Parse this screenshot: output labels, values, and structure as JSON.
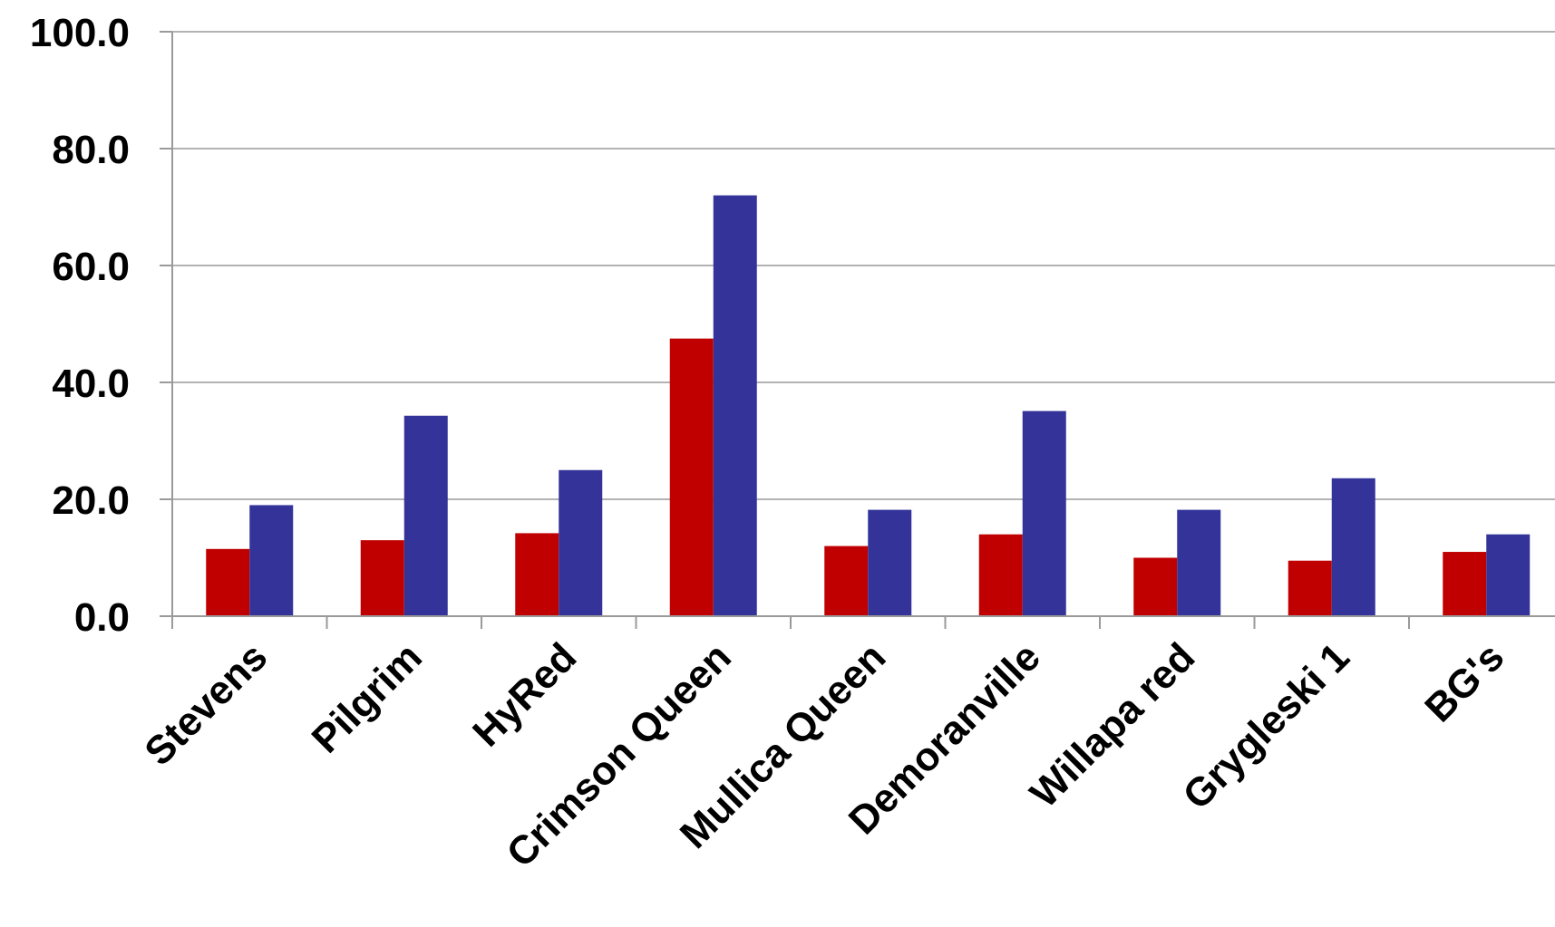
{
  "chart_data": {
    "type": "bar",
    "title": "",
    "xlabel": "",
    "ylabel": "",
    "categories": [
      "Stevens",
      "Pilgrim",
      "HyRed",
      "Crimson Queen",
      "Mullica Queen",
      "Demoranville",
      "Willapa red",
      "Grygleski 1",
      "BG's"
    ],
    "series": [
      {
        "color": "#c00000",
        "values": [
          11.5,
          13.0,
          14.2,
          47.5,
          12.0,
          14.0,
          10.0,
          9.5,
          11.0
        ]
      },
      {
        "color": "#333399",
        "values": [
          19.0,
          34.3,
          25.0,
          72.0,
          18.2,
          35.1,
          18.2,
          23.6,
          14.0
        ]
      }
    ],
    "ylim": [
      0,
      100
    ],
    "yticks": [
      0,
      20,
      40,
      60,
      80,
      100
    ],
    "ytick_labels": [
      "0.0",
      "20.0",
      "40.0",
      "60.0",
      "80.0",
      "100.0"
    ],
    "grid": true,
    "legend": "none"
  }
}
